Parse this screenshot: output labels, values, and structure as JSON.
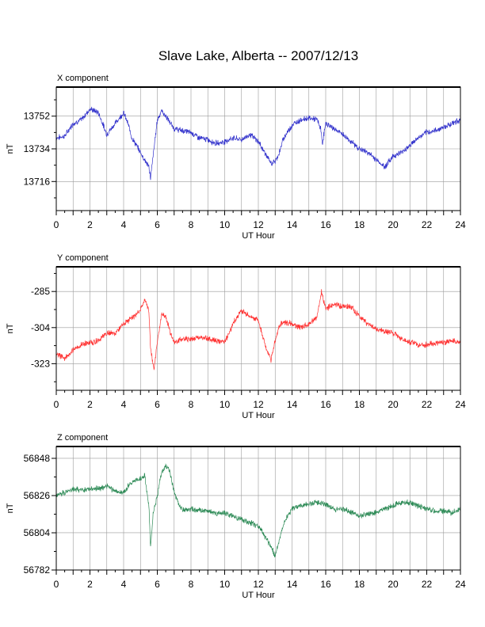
{
  "figure_title": "Slave Lake, Alberta -- 2007/12/13",
  "chart_data": [
    {
      "type": "line",
      "title": "X component",
      "xlabel": "UT Hour",
      "ylabel": "nT",
      "xlim": [
        0,
        24
      ],
      "ylim": [
        13700,
        13768
      ],
      "xticks": [
        0,
        2,
        4,
        6,
        8,
        10,
        12,
        14,
        16,
        18,
        20,
        22,
        24
      ],
      "yticks": [
        13716,
        13734,
        13752
      ],
      "grid": true,
      "series": [
        {
          "color": "#3333cc",
          "x": [
            0,
            0.5,
            1,
            1.5,
            2,
            2.5,
            3,
            3.5,
            4,
            4.25,
            4.5,
            5,
            5.25,
            5.5,
            5.6,
            5.75,
            6,
            6.25,
            6.5,
            7,
            7.5,
            8,
            8.5,
            9,
            9.5,
            10,
            10.5,
            11,
            11.5,
            12,
            12.5,
            12.75,
            13,
            13.25,
            13.5,
            14,
            14.5,
            15,
            15.5,
            15.7,
            15.8,
            16,
            16.5,
            17,
            17.5,
            18,
            18.5,
            19,
            19.25,
            19.5,
            19.75,
            20,
            20.5,
            21,
            21.5,
            22,
            22.5,
            23,
            23.5,
            24
          ],
          "y": [
            13740,
            13741,
            13748,
            13750,
            13756,
            13754,
            13742,
            13748,
            13754,
            13748,
            13740,
            13732,
            13728,
            13724,
            13718,
            13730,
            13750,
            13755,
            13752,
            13745,
            13744,
            13743,
            13740,
            13739,
            13737,
            13738,
            13740,
            13739,
            13742,
            13738,
            13730,
            13726,
            13727,
            13732,
            13740,
            13747,
            13750,
            13751,
            13750,
            13745,
            13737,
            13748,
            13745,
            13742,
            13738,
            13734,
            13732,
            13728,
            13726,
            13724,
            13727,
            13730,
            13732,
            13736,
            13740,
            13743,
            13744,
            13746,
            13748,
            13750
          ]
        }
      ]
    },
    {
      "type": "line",
      "title": "Y component",
      "xlabel": "UT Hour",
      "ylabel": "nT",
      "xlim": [
        0,
        24
      ],
      "ylim": [
        -337,
        -272
      ],
      "xticks": [
        0,
        2,
        4,
        6,
        8,
        10,
        12,
        14,
        16,
        18,
        20,
        22,
        24
      ],
      "yticks": [
        -323,
        -304,
        -285
      ],
      "grid": true,
      "series": [
        {
          "color": "#ff3333",
          "x": [
            0,
            0.5,
            1,
            1.5,
            2,
            2.5,
            3,
            3.5,
            4,
            4.5,
            5,
            5.25,
            5.5,
            5.6,
            5.8,
            6,
            6.25,
            6.5,
            6.75,
            7,
            7.5,
            8,
            8.5,
            9,
            9.5,
            10,
            10.5,
            10.75,
            11,
            11.5,
            12,
            12.25,
            12.5,
            12.75,
            13,
            13.25,
            13.5,
            14,
            14.5,
            15,
            15.5,
            15.75,
            16,
            16.5,
            17,
            17.5,
            18,
            18.5,
            19,
            19.5,
            20,
            20.5,
            21,
            21.5,
            22,
            22.5,
            23,
            23.5,
            24
          ],
          "y": [
            -318,
            -320,
            -316,
            -313,
            -312,
            -311,
            -307,
            -307,
            -302,
            -299,
            -295,
            -289,
            -295,
            -315,
            -326,
            -312,
            -297,
            -298,
            -306,
            -312,
            -310,
            -310,
            -309,
            -310,
            -311,
            -312,
            -302,
            -298,
            -295,
            -298,
            -300,
            -308,
            -316,
            -321,
            -311,
            -303,
            -301,
            -302,
            -304,
            -302,
            -298,
            -285,
            -294,
            -292,
            -293,
            -293,
            -298,
            -302,
            -305,
            -306,
            -307,
            -310,
            -312,
            -313,
            -313,
            -312,
            -312,
            -311,
            -312
          ]
        }
      ]
    },
    {
      "type": "line",
      "title": "Z component",
      "xlabel": "UT Hour",
      "ylabel": "nT",
      "xlim": [
        0,
        24
      ],
      "ylim": [
        56782,
        56855
      ],
      "xticks": [
        0,
        2,
        4,
        6,
        8,
        10,
        12,
        14,
        16,
        18,
        20,
        22,
        24
      ],
      "yticks": [
        56782,
        56804,
        56826,
        56848
      ],
      "grid": true,
      "series": [
        {
          "color": "#2e8b57",
          "x": [
            0,
            0.5,
            1,
            1.5,
            2,
            2.5,
            3,
            3.5,
            4,
            4.5,
            5,
            5.25,
            5.5,
            5.6,
            5.75,
            6,
            6.25,
            6.5,
            6.75,
            7,
            7.25,
            7.5,
            8,
            8.5,
            9,
            9.5,
            10,
            10.5,
            11,
            11.5,
            12,
            12.25,
            12.5,
            12.75,
            13,
            13.25,
            13.5,
            14,
            14.5,
            15,
            15.5,
            16,
            16.5,
            17,
            17.5,
            18,
            18.5,
            19,
            19.5,
            20,
            20.5,
            21,
            21.5,
            22,
            22.5,
            23,
            23.5,
            24
          ],
          "y": [
            56826,
            56828,
            56830,
            56829,
            56830,
            56830,
            56832,
            56828,
            56828,
            56834,
            56836,
            56838,
            56820,
            56795,
            56815,
            56826,
            56840,
            56844,
            56840,
            56828,
            56821,
            56818,
            56818,
            56817,
            56817,
            56815,
            56816,
            56814,
            56812,
            56810,
            56808,
            56804,
            56800,
            56796,
            56790,
            56800,
            56810,
            56818,
            56820,
            56821,
            56822,
            56821,
            56818,
            56818,
            56816,
            56814,
            56815,
            56816,
            56818,
            56820,
            56822,
            56822,
            56820,
            56818,
            56817,
            56817,
            56816,
            56818
          ]
        }
      ]
    }
  ]
}
